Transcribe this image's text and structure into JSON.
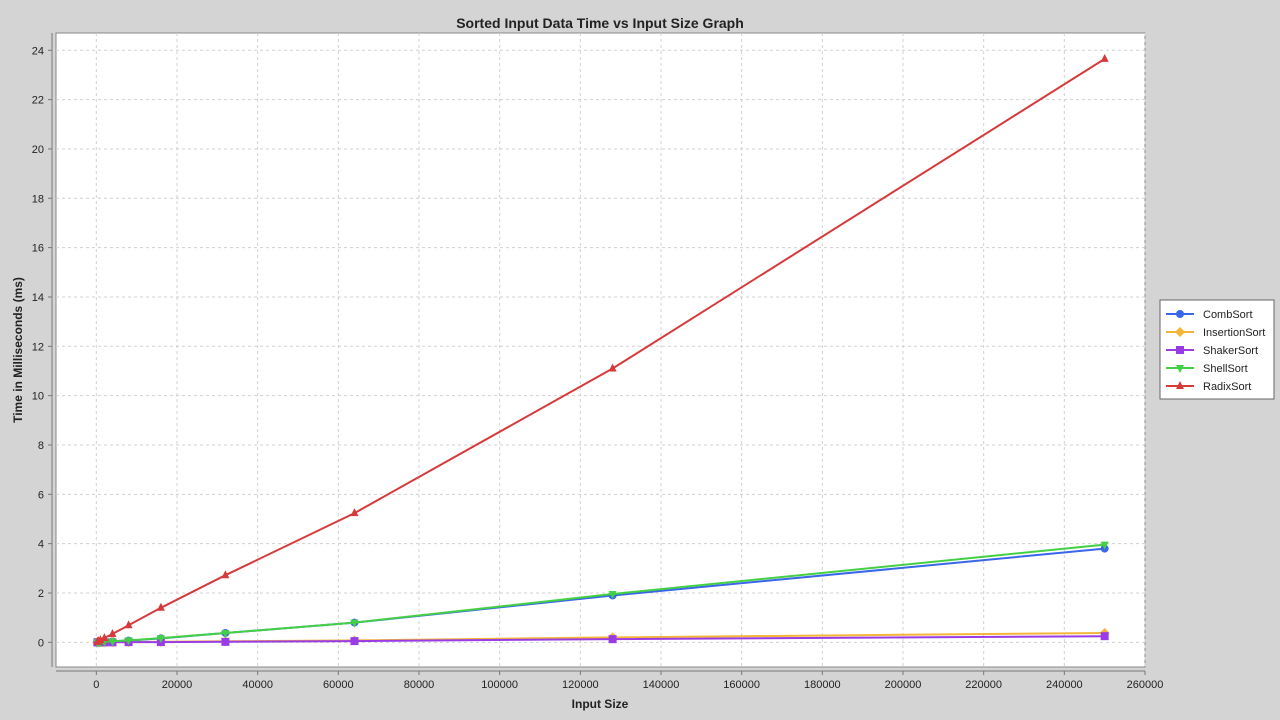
{
  "chart_data": {
    "type": "line",
    "title": "Sorted Input Data Time vs Input Size Graph",
    "xlabel": "Input Size",
    "ylabel": "Time in Milliseconds (ms)",
    "xlim": [
      -10000,
      260000
    ],
    "ylim": [
      -1,
      24.7
    ],
    "x_ticks": [
      0,
      20000,
      40000,
      60000,
      80000,
      100000,
      120000,
      140000,
      160000,
      180000,
      200000,
      220000,
      240000,
      260000
    ],
    "y_ticks": [
      0,
      2,
      4,
      6,
      8,
      10,
      12,
      14,
      16,
      18,
      20,
      22,
      24
    ],
    "grid": true,
    "legend_position": "right",
    "x": [
      250,
      500,
      1000,
      2000,
      4000,
      8000,
      16000,
      32000,
      64000,
      128000,
      250000
    ],
    "series": [
      {
        "name": "CombSort",
        "color": "#3a66ea",
        "marker": "circle",
        "values": [
          0.0,
          0.0,
          0.01,
          0.02,
          0.04,
          0.07,
          0.16,
          0.38,
          0.8,
          1.9,
          3.8
        ]
      },
      {
        "name": "InsertionSort",
        "color": "#f5b53a",
        "marker": "diamond",
        "values": [
          0.0,
          0.0,
          0.0,
          0.0,
          0.01,
          0.01,
          0.02,
          0.04,
          0.08,
          0.2,
          0.38
        ]
      },
      {
        "name": "ShakerSort",
        "color": "#9a3ce6",
        "marker": "square",
        "values": [
          0.0,
          0.0,
          0.0,
          0.0,
          0.0,
          0.01,
          0.01,
          0.02,
          0.05,
          0.13,
          0.25
        ]
      },
      {
        "name": "ShellSort",
        "color": "#44d044",
        "marker": "triangle-down",
        "values": [
          0.0,
          0.0,
          0.01,
          0.02,
          0.04,
          0.08,
          0.17,
          0.38,
          0.8,
          1.96,
          3.96
        ]
      },
      {
        "name": "RadixSort",
        "color": "#d63a3a",
        "marker": "triangle-up",
        "values": [
          0.02,
          0.05,
          0.09,
          0.17,
          0.34,
          0.69,
          1.4,
          2.72,
          5.24,
          11.1,
          23.65
        ]
      }
    ]
  }
}
